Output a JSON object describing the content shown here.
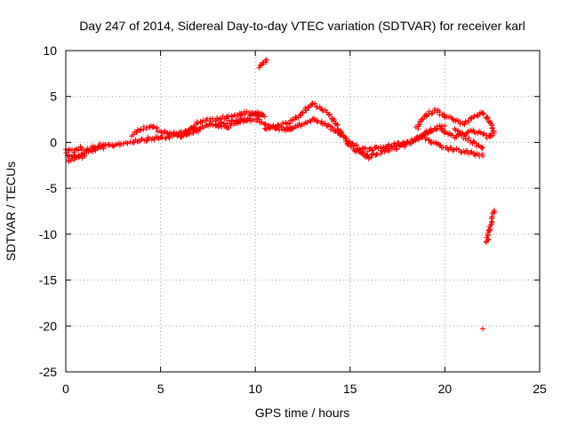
{
  "chart_data": {
    "type": "scatter",
    "title": "Day 247 of 2014, Sidereal Day-to-day VTEC variation (SDTVAR) for receiver karl",
    "xlabel": "GPS time / hours",
    "ylabel": "SDTVAR / TECUs",
    "xlim": [
      0,
      25
    ],
    "ylim": [
      -25,
      10
    ],
    "xticks": [
      0,
      5,
      10,
      15,
      20,
      25
    ],
    "yticks": [
      -25,
      -20,
      -15,
      -10,
      -5,
      0,
      5,
      10
    ],
    "grid": true,
    "marker": "+",
    "series": [
      {
        "name": "SDTVAR",
        "color": "#ff0000",
        "tracks": [
          {
            "x": [
              0.0,
              0.5,
              1.0,
              1.5,
              2.0,
              2.5,
              3.0,
              3.5,
              4.0,
              4.5,
              5.0,
              5.5,
              6.0,
              6.5,
              7.0
            ],
            "y": [
              -1.2,
              -1.6,
              -1.2,
              -0.8,
              -0.5,
              -0.3,
              -0.1,
              0.1,
              0.3,
              0.4,
              0.5,
              0.6,
              0.8,
              1.0,
              1.2
            ]
          },
          {
            "x": [
              0.0,
              0.4,
              0.8,
              1.2,
              1.6,
              2.0
            ],
            "y": [
              -0.8,
              -0.9,
              -0.6,
              -0.7,
              -0.4,
              -0.2
            ]
          },
          {
            "x": [
              0.1,
              0.4,
              0.7,
              1.0
            ],
            "y": [
              -2.0,
              -1.8,
              -1.6,
              -1.5
            ]
          },
          {
            "x": [
              3.5,
              4.0,
              4.5,
              5.0,
              5.5,
              6.0,
              6.5,
              7.0,
              7.5,
              8.0,
              8.5,
              9.0,
              9.5,
              10.0,
              10.5
            ],
            "y": [
              0.8,
              1.5,
              1.8,
              1.2,
              0.9,
              1.0,
              1.2,
              2.2,
              2.4,
              2.5,
              2.8,
              3.0,
              3.2,
              3.0,
              2.8
            ]
          },
          {
            "x": [
              6.0,
              6.5,
              7.0,
              7.5,
              8.0,
              8.5,
              9.0,
              9.5,
              10.0,
              10.5,
              11.0,
              11.5,
              12.0
            ],
            "y": [
              0.6,
              1.2,
              1.6,
              1.8,
              2.0,
              2.2,
              2.3,
              2.5,
              2.5,
              2.0,
              1.6,
              1.4,
              1.6
            ]
          },
          {
            "x": [
              8.0,
              8.4,
              8.8,
              9.2,
              9.6,
              10.0,
              10.4
            ],
            "y": [
              1.8,
              1.6,
              1.9,
              2.2,
              2.6,
              3.3,
              3.0
            ]
          },
          {
            "x": [
              10.2,
              10.4,
              10.6
            ],
            "y": [
              8.2,
              8.6,
              9.0
            ]
          },
          {
            "x": [
              10.5,
              11.0,
              11.5,
              12.0,
              12.5,
              13.0,
              13.5,
              14.0,
              14.5,
              15.0,
              15.5,
              16.0
            ],
            "y": [
              1.5,
              1.7,
              2.0,
              2.3,
              3.2,
              4.2,
              3.7,
              2.8,
              1.2,
              -0.4,
              -1.2,
              -1.6
            ]
          },
          {
            "x": [
              11.5,
              12.0,
              12.5,
              13.0,
              13.5,
              14.0,
              14.5,
              15.0,
              15.5,
              16.0,
              16.5,
              17.0,
              17.5,
              18.0,
              18.5
            ],
            "y": [
              1.4,
              1.6,
              2.0,
              2.5,
              2.2,
              1.6,
              0.8,
              0.0,
              -0.6,
              -0.8,
              -0.6,
              -0.4,
              -0.2,
              0.0,
              0.4
            ]
          },
          {
            "x": [
              15.5,
              16.0,
              16.5,
              17.0,
              17.5,
              18.0,
              18.5,
              19.0,
              19.5,
              20.0
            ],
            "y": [
              -1.0,
              -1.6,
              -1.2,
              -0.8,
              -0.6,
              -0.2,
              0.4,
              1.0,
              1.5,
              1.8
            ]
          },
          {
            "x": [
              18.5,
              19.0,
              19.5,
              20.0,
              20.5,
              21.0,
              21.5,
              22.0
            ],
            "y": [
              1.5,
              3.0,
              3.5,
              2.9,
              2.4,
              2.0,
              2.7,
              3.2
            ]
          },
          {
            "x": [
              18.5,
              19.0,
              19.5,
              20.0,
              20.5,
              21.0,
              21.5,
              22.0
            ],
            "y": [
              0.3,
              1.0,
              1.5,
              1.2,
              0.6,
              1.0,
              1.3,
              0.9
            ]
          },
          {
            "x": [
              19.0,
              19.5,
              20.0,
              20.5,
              21.0,
              21.5,
              22.0
            ],
            "y": [
              0.4,
              -0.2,
              -0.6,
              -0.8,
              -1.0,
              -1.2,
              -1.5
            ]
          },
          {
            "x": [
              20.5,
              21.0,
              21.5,
              22.0
            ],
            "y": [
              1.4,
              0.6,
              0.0,
              -0.6
            ]
          },
          {
            "x": [
              22.0,
              22.2,
              22.4,
              22.6
            ],
            "y": [
              3.0,
              2.8,
              2.2,
              1.2
            ]
          },
          {
            "x": [
              22.0,
              22.3,
              22.6
            ],
            "y": [
              0.8,
              0.6,
              1.0
            ]
          },
          {
            "x": [
              22.2,
              22.3,
              22.4,
              22.5,
              22.6
            ],
            "y": [
              -11.0,
              -10.0,
              -9.0,
              -8.0,
              -7.4
            ]
          },
          {
            "x": [
              22.0
            ],
            "y": [
              -20.3
            ]
          }
        ]
      }
    ]
  }
}
